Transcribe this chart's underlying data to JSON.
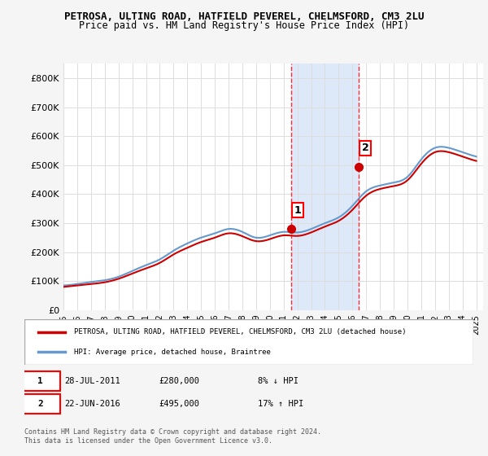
{
  "title": "PETROSA, ULTING ROAD, HATFIELD PEVEREL, CHELMSFORD, CM3 2LU",
  "subtitle": "Price paid vs. HM Land Registry's House Price Index (HPI)",
  "ylabel_ticks": [
    "£0",
    "£100K",
    "£200K",
    "£300K",
    "£400K",
    "£500K",
    "£600K",
    "£700K",
    "£800K"
  ],
  "ytick_values": [
    0,
    100000,
    200000,
    300000,
    400000,
    500000,
    600000,
    700000,
    800000
  ],
  "ylim": [
    0,
    850000
  ],
  "xlim_start": 1995.0,
  "xlim_end": 2025.5,
  "background_color": "#f0f4ff",
  "plot_bg_color": "#ffffff",
  "red_color": "#cc0000",
  "blue_color": "#6699cc",
  "highlight_region_color": "#dde8f8",
  "transaction1_x": 2011.57,
  "transaction1_y": 280000,
  "transaction1_label": "1",
  "transaction2_x": 2016.47,
  "transaction2_y": 495000,
  "transaction2_label": "2",
  "dashed_line1_x": 2011.57,
  "dashed_line2_x": 2016.47,
  "legend_line1": "PETROSA, ULTING ROAD, HATFIELD PEVEREL, CHELMSFORD, CM3 2LU (detached house)",
  "legend_line2": "HPI: Average price, detached house, Braintree",
  "note1_box": "1",
  "note1_date": "28-JUL-2011",
  "note1_price": "£280,000",
  "note1_hpi": "8% ↓ HPI",
  "note2_box": "2",
  "note2_date": "22-JUN-2016",
  "note2_price": "£495,000",
  "note2_hpi": "17% ↑ HPI",
  "footer": "Contains HM Land Registry data © Crown copyright and database right 2024.\nThis data is licensed under the Open Government Licence v3.0.",
  "years": [
    1995,
    1996,
    1997,
    1998,
    1999,
    2000,
    2001,
    2002,
    2003,
    2004,
    2005,
    2006,
    2007,
    2008,
    2009,
    2010,
    2011,
    2012,
    2013,
    2014,
    2015,
    2016,
    2017,
    2018,
    2019,
    2020,
    2021,
    2022,
    2023,
    2024,
    2025
  ],
  "hpi_values": [
    85000,
    90000,
    97000,
    103000,
    115000,
    135000,
    155000,
    175000,
    205000,
    230000,
    250000,
    265000,
    280000,
    270000,
    250000,
    258000,
    270000,
    268000,
    280000,
    300000,
    320000,
    360000,
    410000,
    430000,
    440000,
    460000,
    520000,
    560000,
    560000,
    545000,
    530000
  ],
  "property_values": [
    80000,
    85000,
    90000,
    96000,
    108000,
    126000,
    144000,
    163000,
    192000,
    215000,
    235000,
    250000,
    265000,
    255000,
    238000,
    245000,
    258000,
    256000,
    268000,
    288000,
    308000,
    346000,
    395000,
    418000,
    428000,
    448000,
    505000,
    545000,
    545000,
    530000,
    515000
  ]
}
